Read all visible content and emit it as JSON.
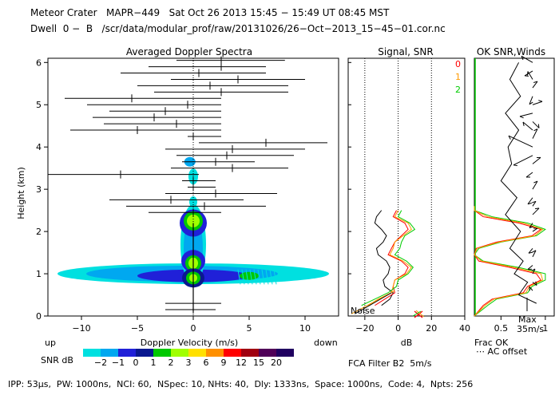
{
  "header": {
    "line1": "Meteor Crater   MAPR−449   Sat Oct 26 2013 15:45 − 15:49 UT 08:45 MST",
    "line2": "Dwell  0 −  B   /scr/data/modular_prof/raw/20131026/26−Oct−2013_15−45−01.cor.nc"
  },
  "footer": "IPP: 53μs,  PW: 1000ns,  NCI: 60,  NSpec: 10, NHts: 40,  Dly: 1333ns,  Space: 1000ns,  Code: 4,  Npts: 256",
  "colorbar": {
    "label": "SNR dB",
    "ticks": [
      "−2",
      "−1",
      "0",
      "1",
      "2",
      "3",
      "6",
      "9",
      "12",
      "15",
      "20"
    ],
    "colors": [
      "#00e0e0",
      "#00a8f0",
      "#2020d8",
      "#0a1890",
      "#00c800",
      "#a0ff00",
      "#ffe000",
      "#ff9000",
      "#ff0000",
      "#a00010",
      "#500058",
      "#200060"
    ]
  },
  "chart_data": [
    {
      "type": "heatmap",
      "title": "Averaged Doppler Spectra",
      "xlabel": "Doppler Velocity (m/s)",
      "ylabel": "Height (km)",
      "xlim": [
        -13,
        13
      ],
      "ylim": [
        0,
        6.1
      ],
      "xticks": [
        -10,
        -5,
        0,
        5,
        10
      ],
      "yticks": [
        0,
        1,
        2,
        3,
        4,
        5,
        6
      ],
      "left_label": "up",
      "right_label": "down",
      "spread_bars": [
        {
          "h": 6.05,
          "lo": -1.5,
          "hi": 8.2,
          "m": 2.5
        },
        {
          "h": 5.9,
          "lo": -4.0,
          "hi": 6.5,
          "m": 2.5
        },
        {
          "h": 5.75,
          "lo": -6.5,
          "hi": 6.5,
          "m": 0.5
        },
        {
          "h": 5.6,
          "lo": -2.0,
          "hi": 10.0,
          "m": 4.0
        },
        {
          "h": 5.45,
          "lo": -5.0,
          "hi": 8.5,
          "m": 1.5
        },
        {
          "h": 5.3,
          "lo": -3.5,
          "hi": 8.5,
          "m": 2.5
        },
        {
          "h": 5.15,
          "lo": -11.5,
          "hi": 2.5,
          "m": -5.5
        },
        {
          "h": 5.0,
          "lo": -9.5,
          "hi": 2.5,
          "m": -0.5
        },
        {
          "h": 4.85,
          "lo": -7.5,
          "hi": 2.5,
          "m": -2.5
        },
        {
          "h": 4.7,
          "lo": -9.0,
          "hi": 2.5,
          "m": -3.5
        },
        {
          "h": 4.55,
          "lo": -8.0,
          "hi": 2.5,
          "m": -1.5
        },
        {
          "h": 4.4,
          "lo": -11.0,
          "hi": 2.5,
          "m": -5.0
        },
        {
          "h": 4.25,
          "lo": -0.5,
          "hi": 2.5,
          "m": 0.0
        },
        {
          "h": 4.1,
          "lo": 0.5,
          "hi": 12.0,
          "m": 6.5
        },
        {
          "h": 3.95,
          "lo": -2.5,
          "hi": 10.0,
          "m": 3.5
        },
        {
          "h": 3.8,
          "lo": -1.5,
          "hi": 9.0,
          "m": 3.0
        },
        {
          "h": 3.65,
          "lo": -1.0,
          "hi": 5.5,
          "m": 2.0
        },
        {
          "h": 3.5,
          "lo": -2.0,
          "hi": 8.5,
          "m": 3.5
        },
        {
          "h": 3.35,
          "lo": -13.0,
          "hi": 0.5,
          "m": -6.5
        },
        {
          "h": 3.2,
          "lo": -1.0,
          "hi": 2.0,
          "m": 0.0
        },
        {
          "h": 3.05,
          "lo": -0.5,
          "hi": 2.0,
          "m": 0.0
        },
        {
          "h": 2.9,
          "lo": -2.5,
          "hi": 7.5,
          "m": 2.0
        },
        {
          "h": 2.75,
          "lo": -7.5,
          "hi": 4.5,
          "m": -2.0
        },
        {
          "h": 2.6,
          "lo": -6.0,
          "hi": 6.5,
          "m": 1.0
        },
        {
          "h": 2.45,
          "lo": -4.0,
          "hi": 2.5,
          "m": 0.0
        },
        {
          "h": 0.3,
          "lo": -2.5,
          "hi": 2.5,
          "m": 0.0
        },
        {
          "h": 0.15,
          "lo": -2.5,
          "hi": 2.0,
          "m": 0.0
        }
      ]
    },
    {
      "type": "line",
      "title": "Signal, SNR",
      "xlabel": "dB",
      "xlim": [
        -30,
        40
      ],
      "xticks": [
        -20,
        0,
        20,
        40
      ],
      "gridlines": [
        -20,
        0,
        20
      ],
      "noise_label": "Noise",
      "heights": [
        0.25,
        0.4,
        0.55,
        0.7,
        0.85,
        1.0,
        1.15,
        1.3,
        1.45,
        1.6,
        1.75,
        1.9,
        2.05,
        2.2,
        2.35,
        2.5
      ],
      "series": [
        {
          "name": "signal",
          "color": "#000000",
          "values": [
            -10,
            -5,
            -3,
            -8,
            -9,
            -6,
            -5,
            -7,
            -12,
            -13,
            -9,
            -7,
            -10,
            -14,
            -13,
            -10
          ]
        },
        {
          "name": "0",
          "color": "#ff0000",
          "values": [
            -14,
            -8,
            -2,
            -3,
            -2,
            4,
            6,
            2,
            -6,
            -4,
            -2,
            2,
            6,
            4,
            -3,
            -1
          ]
        },
        {
          "name": "1",
          "color": "#ff9a00",
          "values": [
            -18,
            -12,
            -4,
            -3,
            -2,
            5,
            8,
            3,
            -5,
            -3,
            -2,
            3,
            8,
            6,
            -2,
            0
          ]
        },
        {
          "name": "2",
          "color": "#00cc00",
          "values": [
            -22,
            -14,
            -6,
            -1,
            0,
            6,
            9,
            5,
            -2,
            1,
            2,
            4,
            10,
            7,
            0,
            2
          ]
        }
      ]
    },
    {
      "type": "line",
      "title": "OK SNR,Winds",
      "legend": [
        "0",
        "1",
        "2"
      ],
      "legend_colors": [
        "#ff0000",
        "#ff9a00",
        "#00cc00"
      ],
      "xlabel": "Frac OK",
      "xticks": [
        "0.5",
        "1"
      ],
      "xlim": [
        0.2,
        1.1
      ],
      "note": "AC offset",
      "max_label": "Max",
      "speed_label": "35m/s"
    }
  ],
  "fca": "FCA Filter B2  5m/s"
}
